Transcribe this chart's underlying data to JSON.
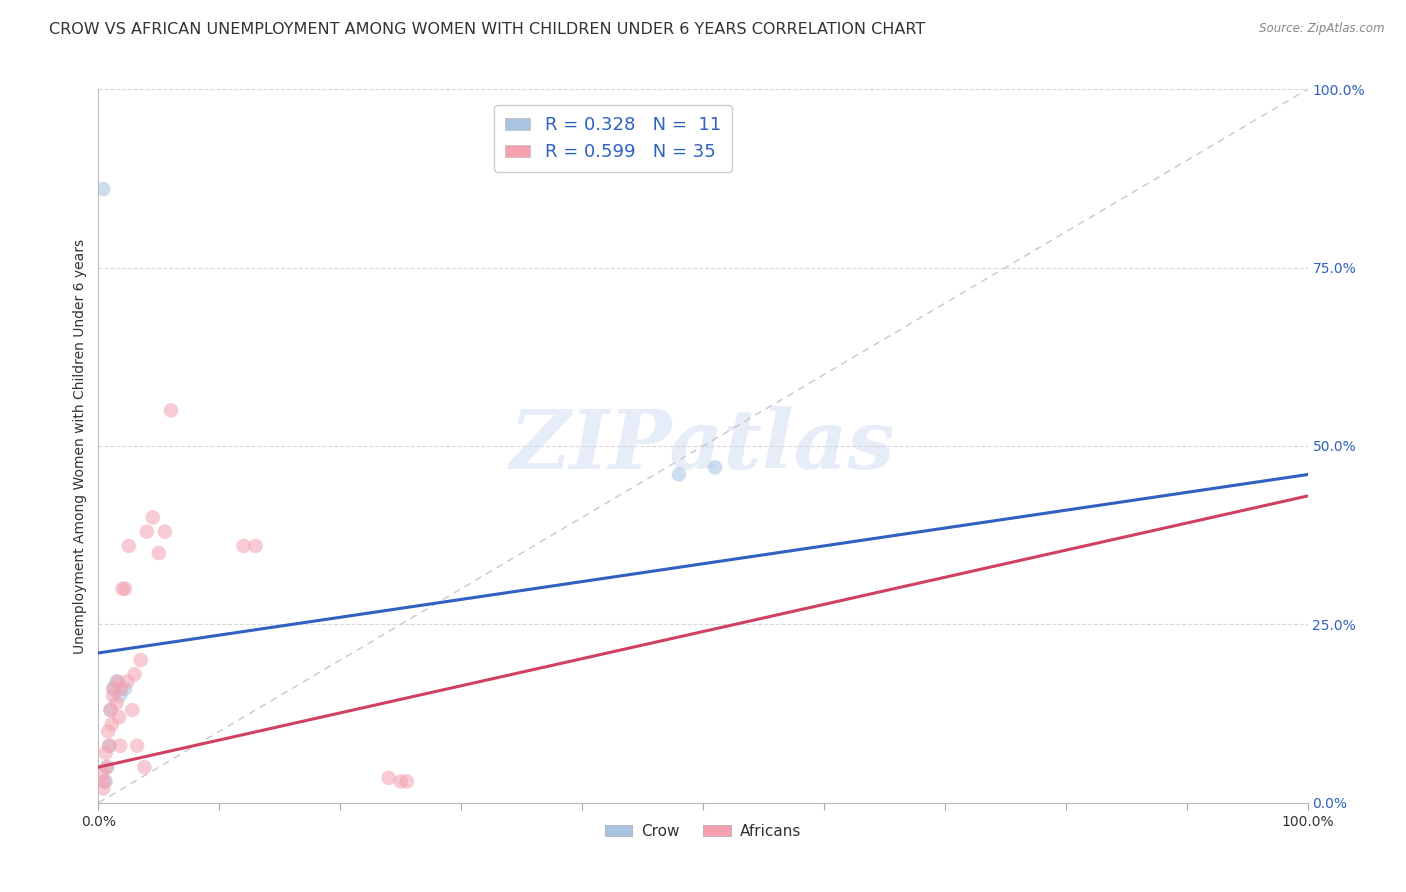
{
  "title": "CROW VS AFRICAN UNEMPLOYMENT AMONG WOMEN WITH CHILDREN UNDER 6 YEARS CORRELATION CHART",
  "source": "Source: ZipAtlas.com",
  "ylabel": "Unemployment Among Women with Children Under 6 years",
  "crow_R": 0.328,
  "crow_N": 11,
  "african_R": 0.599,
  "african_N": 35,
  "crow_color": "#a8c4e0",
  "african_color": "#f4a0b0",
  "crow_line_color": "#3060c0",
  "african_line_color": "#d04060",
  "ref_line_color": "#c8c8c8",
  "legend_R_N_color": "#3060c0",
  "crow_scatter_x": [
    0.004,
    0.006,
    0.007,
    0.009,
    0.01,
    0.012,
    0.015,
    0.018,
    0.022,
    0.48,
    0.51
  ],
  "crow_scatter_y": [
    0.86,
    0.03,
    0.05,
    0.08,
    0.13,
    0.16,
    0.17,
    0.15,
    0.16,
    0.46,
    0.47
  ],
  "african_scatter_x": [
    0.003,
    0.004,
    0.005,
    0.006,
    0.007,
    0.008,
    0.009,
    0.01,
    0.011,
    0.012,
    0.013,
    0.015,
    0.016,
    0.017,
    0.018,
    0.019,
    0.02,
    0.022,
    0.024,
    0.025,
    0.028,
    0.03,
    0.032,
    0.035,
    0.038,
    0.04,
    0.045,
    0.05,
    0.055,
    0.06,
    0.12,
    0.13,
    0.24,
    0.25,
    0.255
  ],
  "african_scatter_y": [
    0.04,
    0.02,
    0.03,
    0.07,
    0.05,
    0.1,
    0.08,
    0.13,
    0.11,
    0.15,
    0.16,
    0.14,
    0.17,
    0.12,
    0.08,
    0.16,
    0.3,
    0.3,
    0.17,
    0.36,
    0.13,
    0.18,
    0.08,
    0.2,
    0.05,
    0.38,
    0.4,
    0.35,
    0.38,
    0.55,
    0.36,
    0.36,
    0.035,
    0.03,
    0.03
  ],
  "xlim": [
    0.0,
    1.0
  ],
  "ylim": [
    0.0,
    1.0
  ],
  "ytick_positions": [
    0.0,
    0.25,
    0.5,
    0.75,
    1.0
  ],
  "ytick_right_labels": [
    "0.0%",
    "25.0%",
    "50.0%",
    "75.0%",
    "100.0%"
  ],
  "xtick_positions": [
    0.0,
    0.1,
    0.2,
    0.3,
    0.4,
    0.5,
    0.6,
    0.7,
    0.8,
    0.9,
    1.0
  ],
  "xtick_labels_show": {
    "0.0": "0.0%",
    "1.0": "100.0%"
  },
  "crow_line_intercept": 0.21,
  "crow_line_slope": 0.25,
  "african_line_intercept": 0.05,
  "african_line_slope": 0.38,
  "watermark_text": "ZIPatlas",
  "background_color": "#ffffff",
  "grid_color": "#d8d8d8",
  "title_fontsize": 11.5,
  "axis_label_fontsize": 10,
  "tick_color": "#3060c0",
  "marker_size": 110,
  "marker_alpha": 0.55
}
